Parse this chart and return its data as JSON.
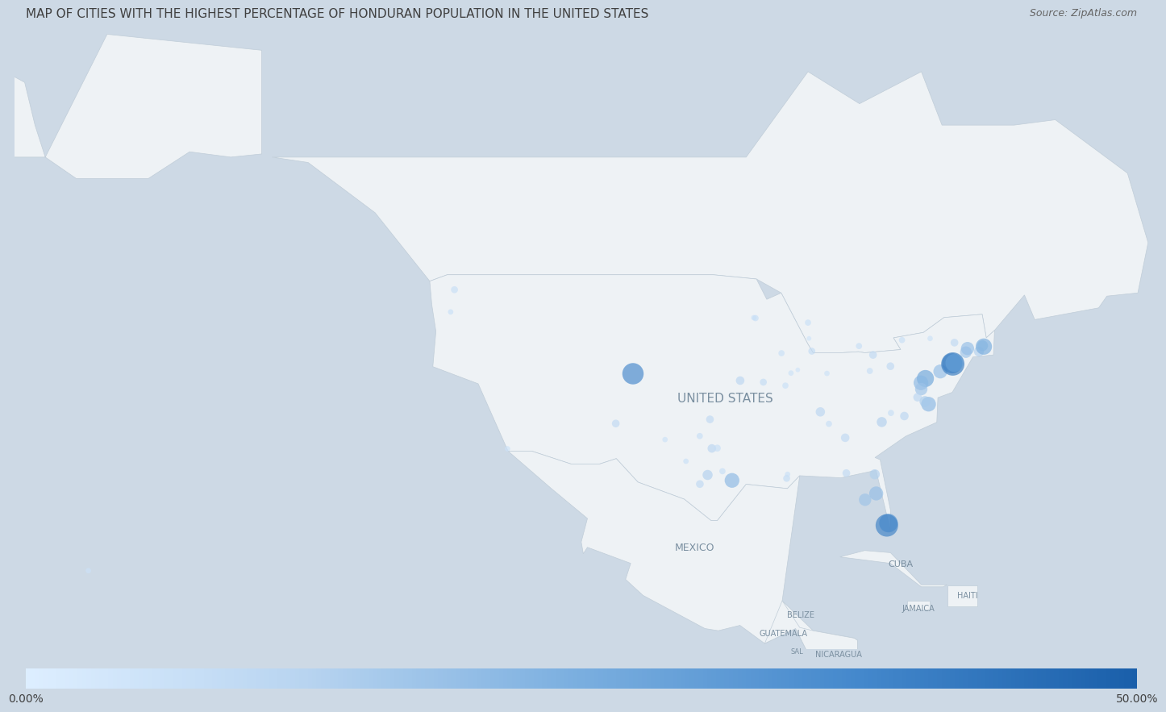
{
  "title": "MAP OF CITIES WITH THE HIGHEST PERCENTAGE OF HONDURAN POPULATION IN THE UNITED STATES",
  "source": "Source: ZipAtlas.com",
  "colorbar_min": "0.00%",
  "colorbar_max": "50.00%",
  "background_color": "#cdd9e5",
  "land_color": "#eef2f5",
  "border_color": "#c0cdd8",
  "title_color": "#404040",
  "source_color": "#666666",
  "title_fontsize": 11,
  "label_color": "#7a8fa0",
  "extent": [
    -165,
    -55,
    14,
    73
  ],
  "cities": [
    {
      "lon": -122.3,
      "lat": 47.6,
      "pct": 0.08,
      "size": 18
    },
    {
      "lon": -104.98,
      "lat": 39.74,
      "pct": 0.38,
      "size": 55
    },
    {
      "lon": -117.15,
      "lat": 32.72,
      "pct": 0.06,
      "size": 14
    },
    {
      "lon": -106.65,
      "lat": 35.08,
      "pct": 0.1,
      "size": 20
    },
    {
      "lon": -97.33,
      "lat": 32.75,
      "pct": 0.12,
      "size": 22
    },
    {
      "lon": -97.74,
      "lat": 30.27,
      "pct": 0.14,
      "size": 26
    },
    {
      "lon": -96.8,
      "lat": 32.78,
      "pct": 0.08,
      "size": 18
    },
    {
      "lon": -95.37,
      "lat": 29.76,
      "pct": 0.22,
      "size": 38
    },
    {
      "lon": -97.51,
      "lat": 35.47,
      "pct": 0.1,
      "size": 20
    },
    {
      "lon": -90.19,
      "lat": 38.63,
      "pct": 0.07,
      "size": 16
    },
    {
      "lon": -87.63,
      "lat": 41.85,
      "pct": 0.09,
      "size": 18
    },
    {
      "lon": -86.16,
      "lat": 39.77,
      "pct": 0.06,
      "size": 14
    },
    {
      "lon": -84.39,
      "lat": 33.75,
      "pct": 0.1,
      "size": 22
    },
    {
      "lon": -83.05,
      "lat": 42.33,
      "pct": 0.08,
      "size": 16
    },
    {
      "lon": -80.19,
      "lat": 25.77,
      "pct": 0.32,
      "size": 48
    },
    {
      "lon": -80.35,
      "lat": 25.55,
      "pct": 0.4,
      "size": 58
    },
    {
      "lon": -81.38,
      "lat": 28.54,
      "pct": 0.2,
      "size": 36
    },
    {
      "lon": -82.46,
      "lat": 27.95,
      "pct": 0.18,
      "size": 32
    },
    {
      "lon": -85.97,
      "lat": 35.05,
      "pct": 0.08,
      "size": 16
    },
    {
      "lon": -86.8,
      "lat": 36.17,
      "pct": 0.12,
      "size": 24
    },
    {
      "lon": -76.61,
      "lat": 39.29,
      "pct": 0.28,
      "size": 44
    },
    {
      "lon": -77.04,
      "lat": 38.89,
      "pct": 0.22,
      "size": 38
    },
    {
      "lon": -75.16,
      "lat": 39.95,
      "pct": 0.2,
      "size": 36
    },
    {
      "lon": -74.01,
      "lat": 40.71,
      "pct": 0.35,
      "size": 52
    },
    {
      "lon": -73.95,
      "lat": 40.65,
      "pct": 0.42,
      "size": 60
    },
    {
      "lon": -73.8,
      "lat": 40.75,
      "pct": 0.3,
      "size": 46
    },
    {
      "lon": -71.06,
      "lat": 42.36,
      "pct": 0.16,
      "size": 28
    },
    {
      "lon": -72.68,
      "lat": 41.76,
      "pct": 0.18,
      "size": 30
    },
    {
      "lon": -78.88,
      "lat": 42.89,
      "pct": 0.08,
      "size": 16
    },
    {
      "lon": -76.15,
      "lat": 43.04,
      "pct": 0.06,
      "size": 14
    },
    {
      "lon": -73.79,
      "lat": 42.65,
      "pct": 0.1,
      "size": 20
    },
    {
      "lon": -71.41,
      "lat": 41.82,
      "pct": 0.14,
      "size": 26
    },
    {
      "lon": -70.94,
      "lat": 42.28,
      "pct": 0.26,
      "size": 42
    },
    {
      "lon": -72.52,
      "lat": 42.1,
      "pct": 0.2,
      "size": 34
    },
    {
      "lon": -88.0,
      "lat": 44.52,
      "pct": 0.07,
      "size": 16
    },
    {
      "lon": -93.26,
      "lat": 44.98,
      "pct": 0.06,
      "size": 14
    },
    {
      "lon": -93.09,
      "lat": 44.94,
      "pct": 0.08,
      "size": 16
    },
    {
      "lon": -88.99,
      "lat": 40.1,
      "pct": 0.05,
      "size": 12
    },
    {
      "lon": -89.65,
      "lat": 39.8,
      "pct": 0.06,
      "size": 14
    },
    {
      "lon": -90.57,
      "lat": 41.66,
      "pct": 0.07,
      "size": 16
    },
    {
      "lon": -92.33,
      "lat": 38.95,
      "pct": 0.09,
      "size": 18
    },
    {
      "lon": -94.58,
      "lat": 39.1,
      "pct": 0.12,
      "size": 22
    },
    {
      "lon": -81.69,
      "lat": 41.5,
      "pct": 0.1,
      "size": 20
    },
    {
      "lon": -82.0,
      "lat": 40.0,
      "pct": 0.08,
      "size": 16
    },
    {
      "lon": -80.0,
      "lat": 40.44,
      "pct": 0.1,
      "size": 20
    },
    {
      "lon": -77.01,
      "lat": 38.3,
      "pct": 0.18,
      "size": 32
    },
    {
      "lon": -78.65,
      "lat": 35.78,
      "pct": 0.12,
      "size": 22
    },
    {
      "lon": -80.84,
      "lat": 35.22,
      "pct": 0.14,
      "size": 26
    },
    {
      "lon": -79.95,
      "lat": 36.07,
      "pct": 0.08,
      "size": 16
    },
    {
      "lon": -76.3,
      "lat": 36.89,
      "pct": 0.22,
      "size": 38
    },
    {
      "lon": -76.65,
      "lat": 37.14,
      "pct": 0.16,
      "size": 28
    },
    {
      "lon": -77.37,
      "lat": 37.54,
      "pct": 0.12,
      "size": 22
    },
    {
      "lon": -87.9,
      "lat": 43.04,
      "pct": 0.05,
      "size": 12
    },
    {
      "lon": -122.67,
      "lat": 45.52,
      "pct": 0.07,
      "size": 14
    },
    {
      "lon": -84.28,
      "lat": 30.44,
      "pct": 0.1,
      "size": 20
    },
    {
      "lon": -81.52,
      "lat": 30.33,
      "pct": 0.14,
      "size": 26
    },
    {
      "lon": -90.07,
      "lat": 29.95,
      "pct": 0.09,
      "size": 18
    },
    {
      "lon": -89.98,
      "lat": 30.33,
      "pct": 0.07,
      "size": 14
    },
    {
      "lon": -96.3,
      "lat": 30.62,
      "pct": 0.08,
      "size": 16
    },
    {
      "lon": -101.87,
      "lat": 33.58,
      "pct": 0.06,
      "size": 14
    },
    {
      "lon": -98.5,
      "lat": 33.91,
      "pct": 0.08,
      "size": 16
    },
    {
      "lon": -98.49,
      "lat": 29.42,
      "pct": 0.1,
      "size": 20
    },
    {
      "lon": -99.84,
      "lat": 31.55,
      "pct": 0.07,
      "size": 14
    },
    {
      "lon": -157.82,
      "lat": 21.31,
      "pct": 0.06,
      "size": 14
    }
  ],
  "labels": [
    {
      "lon": -99.0,
      "lat": 23.5,
      "text": "MEXICO",
      "fontsize": 9
    },
    {
      "lon": -96.0,
      "lat": 37.5,
      "text": "UNITED STATES",
      "fontsize": 11
    },
    {
      "lon": -79.0,
      "lat": 22.0,
      "text": "CUBA",
      "fontsize": 8
    },
    {
      "lon": -72.5,
      "lat": 19.0,
      "text": "HAITI",
      "fontsize": 7
    },
    {
      "lon": -77.3,
      "lat": 17.8,
      "text": "JAMAICA",
      "fontsize": 7
    },
    {
      "lon": -88.7,
      "lat": 17.2,
      "text": "BELIZE",
      "fontsize": 7
    },
    {
      "lon": -90.4,
      "lat": 15.5,
      "text": "GUATEMALA",
      "fontsize": 7
    },
    {
      "lon": -85.0,
      "lat": 13.5,
      "text": "NICARAGUA",
      "fontsize": 7
    },
    {
      "lon": -89.1,
      "lat": 13.8,
      "text": "SAL",
      "fontsize": 6
    }
  ]
}
